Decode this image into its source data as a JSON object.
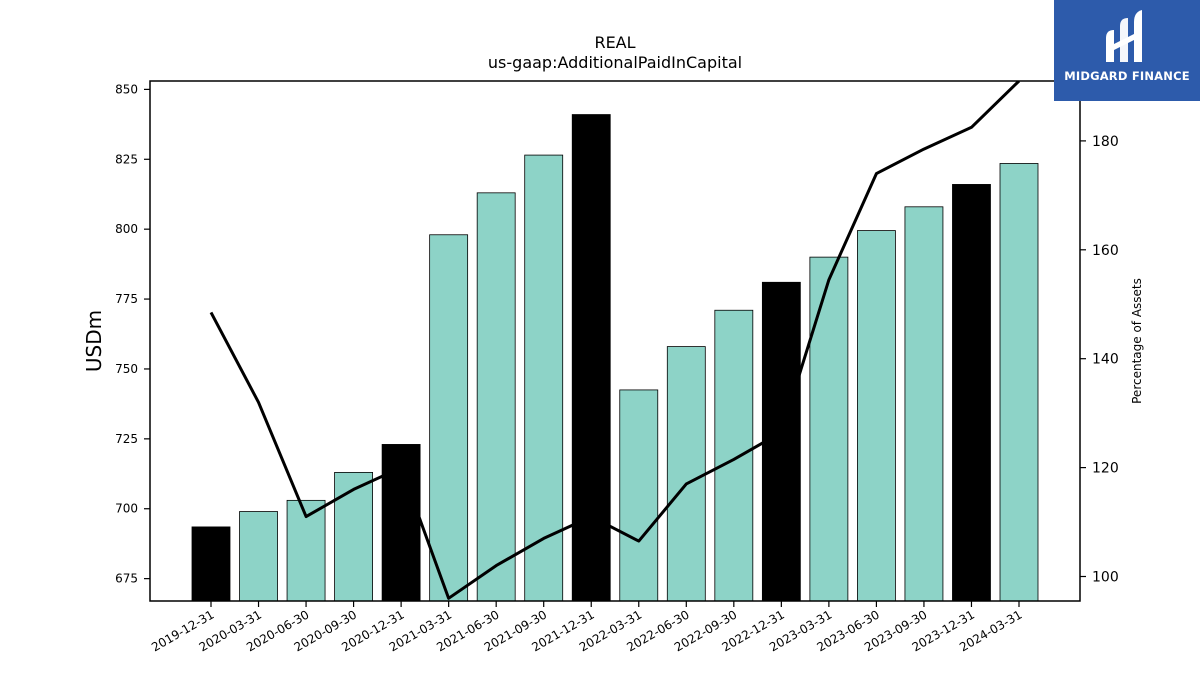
{
  "chart_data": {
    "type": "bar",
    "title": "REAL",
    "subtitle": "us-gaap:AdditionalPaidInCapital",
    "ylabel": "USDm",
    "y2label": "Percentage of Assets",
    "categories": [
      "2019-12-31",
      "2020-03-31",
      "2020-06-30",
      "2020-09-30",
      "2020-12-31",
      "2021-03-31",
      "2021-06-30",
      "2021-09-30",
      "2021-12-31",
      "2022-03-31",
      "2022-06-30",
      "2022-09-30",
      "2022-12-31",
      "2023-03-31",
      "2023-06-30",
      "2023-09-30",
      "2023-12-31",
      "2024-03-31"
    ],
    "series": [
      {
        "type": "bar",
        "values": [
          693.5,
          699,
          703,
          713,
          723,
          798,
          813,
          826.5,
          841,
          742.5,
          758,
          771,
          781,
          790,
          799.5,
          808,
          816,
          823.5
        ],
        "highlight": [
          true,
          false,
          false,
          false,
          true,
          false,
          false,
          false,
          true,
          false,
          false,
          false,
          true,
          false,
          false,
          false,
          true,
          false
        ],
        "color": "#8dd3c7",
        "highlight_color": "#000000"
      },
      {
        "type": "line",
        "axis": "right",
        "values": [
          148.5,
          132,
          111,
          116,
          120,
          96,
          102,
          107,
          111,
          106.5,
          117,
          121.5,
          126.5,
          154.5,
          174,
          178.5,
          182.5,
          191
        ],
        "color": "#000000"
      }
    ],
    "ylim": [
      667,
      853
    ],
    "y2lim": [
      95.5,
      191
    ],
    "yticks": [
      675,
      700,
      725,
      750,
      775,
      800,
      825,
      850
    ],
    "y2ticks": [
      100,
      120,
      140,
      160,
      180
    ],
    "grid": false
  },
  "logo": {
    "text": "MIDGARD FINANCE"
  }
}
